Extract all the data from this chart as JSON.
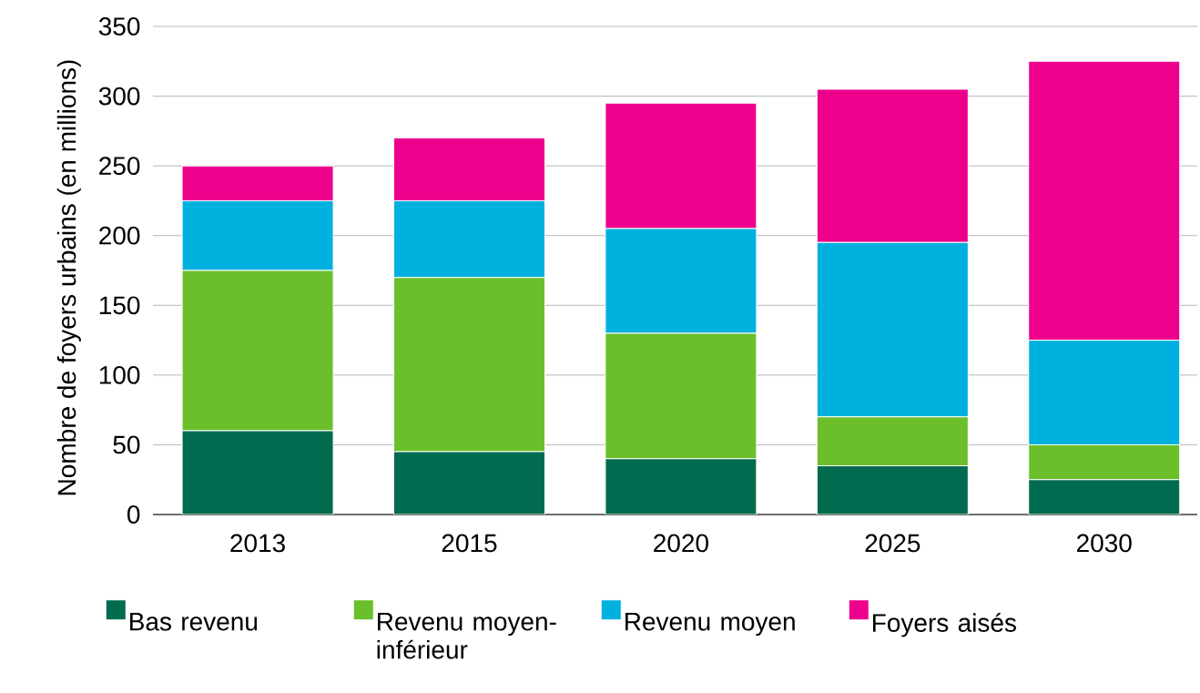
{
  "chart_data": {
    "type": "bar",
    "stacked": true,
    "ylabel": "Nombre de foyers urbains (en millions)",
    "categories": [
      "2013",
      "2015",
      "2020",
      "2025",
      "2030"
    ],
    "series": [
      {
        "name": "Bas revenu",
        "color": "#006b4e",
        "values": [
          60,
          45,
          40,
          35,
          25
        ]
      },
      {
        "name": "Revenu moyen-inférieur",
        "color": "#6abf2a",
        "values": [
          115,
          125,
          90,
          35,
          25
        ]
      },
      {
        "name": "Revenu moyen",
        "color": "#00b0de",
        "values": [
          50,
          55,
          75,
          125,
          75
        ]
      },
      {
        "name": "Foyers aisés",
        "color": "#ec008c",
        "values": [
          25,
          45,
          90,
          110,
          200
        ]
      }
    ],
    "ylim": [
      0,
      350
    ],
    "yticks": [
      0,
      50,
      100,
      150,
      200,
      250,
      300,
      350
    ],
    "grid": "y",
    "legend": "bottom"
  }
}
